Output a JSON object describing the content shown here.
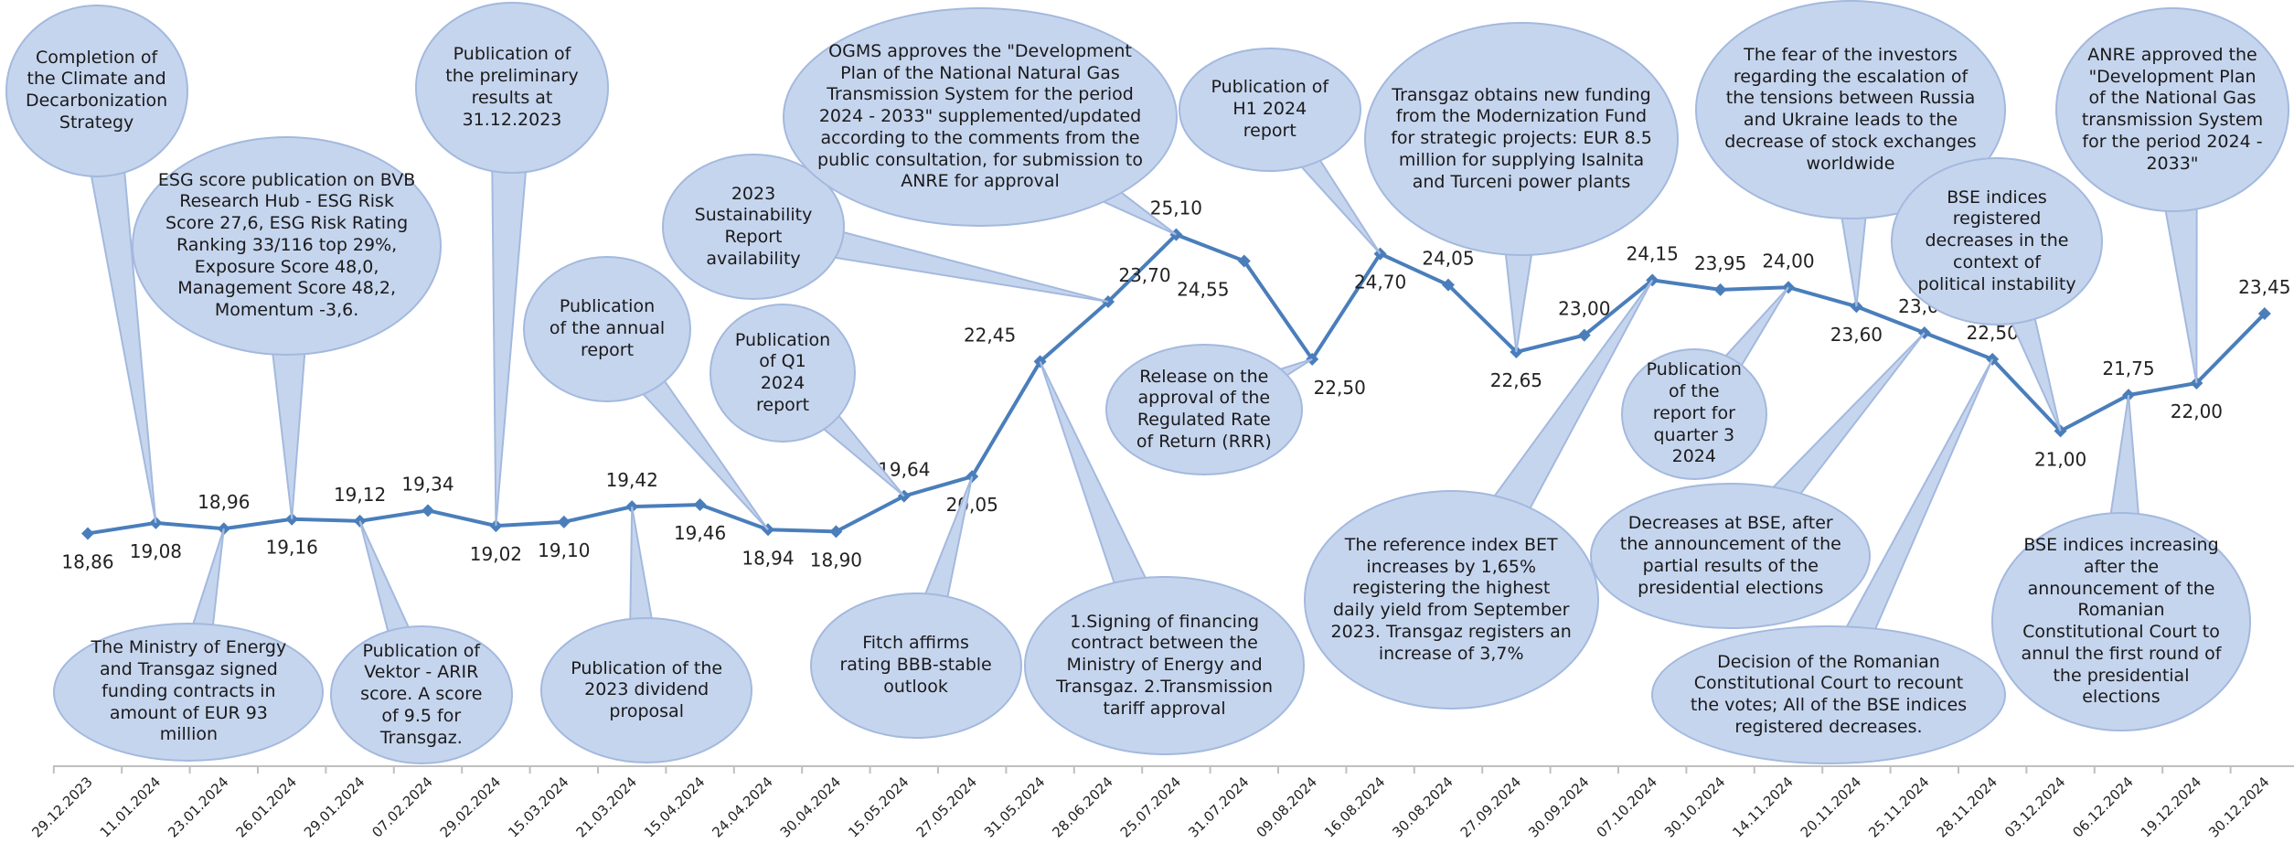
{
  "chart_data": {
    "type": "line",
    "categories": [
      "29.12.2023",
      "11.01.2024",
      "23.01.2024",
      "26.01.2024",
      "29.01.2024",
      "07.02.2024",
      "29.02.2024",
      "15.03.2024",
      "21.03.2024",
      "15.04.2024",
      "24.04.2024",
      "30.04.2024",
      "15.05.2024",
      "27.05.2024",
      "31.05.2024",
      "28.06.2024",
      "25.07.2024",
      "31.07.2024",
      "09.08.2024",
      "16.08.2024",
      "30.08.2024",
      "27.09.2024",
      "30.09.2024",
      "07.10.2024",
      "30.10.2024",
      "14.11.2024",
      "20.11.2024",
      "25.11.2024",
      "28.11.2024",
      "03.12.2024",
      "06.12.2024",
      "19.12.2024",
      "30.12.2024"
    ],
    "values": [
      18.86,
      19.08,
      18.96,
      19.16,
      19.12,
      19.34,
      19.02,
      19.1,
      19.42,
      19.46,
      18.94,
      18.9,
      19.64,
      20.05,
      22.45,
      23.7,
      25.1,
      24.55,
      22.5,
      24.7,
      24.05,
      22.65,
      23.0,
      24.15,
      23.95,
      24.0,
      23.6,
      23.05,
      22.5,
      21.0,
      21.75,
      22.0,
      23.45
    ],
    "value_labels": [
      "18,86",
      "19,08",
      "18,96",
      "19,16",
      "19,12",
      "19,34",
      "19,02",
      "19,10",
      "19,42",
      "19,46",
      "18,94",
      "18,90",
      "19,64",
      "20,05",
      "22,45",
      "23,70",
      "25,10",
      "24,55",
      "22,50",
      "24,70",
      "24,05",
      "22,65",
      "23,00",
      "24,15",
      "23,95",
      "24,00",
      "23,60",
      "23,05",
      "22,50",
      "21,00",
      "21,75",
      "22,00",
      "23,45"
    ],
    "color": "#4a7ebb",
    "ylim": [
      14,
      30
    ],
    "annotations": [
      "Completion of the Climate and Decarbonization Strategy",
      "ESG score publication on BVB Research Hub - ESG Risk Score 27,6, ESG Risk Rating Ranking 33/116 top 29%, Exposure Score 48,0, Management Score 48,2, Momentum -3,6.",
      "Publication of the preliminary results at 31.12.2023",
      "Publication of the annual report",
      "2023 Sustainability Report availability",
      "OGMS approves the \"Development Plan of the National Natural Gas Transmission System for the period 2024 - 2033\" supplemented/updated according to the comments from the public consultation, for submission to ANRE for approval",
      "Publication of Q1 2024 report",
      "Publication of H1 2024 report",
      "Transgaz obtains new funding from the Modernization Fund for strategic projects: EUR 8.5 million for supplying Isalnita and Turceni power plants",
      "The fear of the investors regarding the escalation of the tensions between Russia and Ukraine leads to the decrease of stock exchanges worldwide",
      "BSE indices registered decreases in the context of political instability",
      "ANRE approved the \"Development Plan of the National Gas transmission System for the period 2024 - 2033\"",
      "The Ministry of Energy and Transgaz signed funding contracts in amount of EUR 93 million",
      "Publication of Vektor - ARIR score. A score of 9.5 for Transgaz.",
      "Publication of the 2023 dividend proposal",
      "Release on the approval of the Regulated Rate of Return (RRR)",
      "Fitch affirms rating BBB-stable outlook",
      "1.Signing of financing contract between the Ministry of Energy and Transgaz. 2.Transmission tariff approval",
      "The reference index BET increases by 1,65% registering the highest daily yield from September 2023. Transgaz registers an increase of 3,7%",
      "Publication of the report for quarter 3 2024",
      "Decreases at BSE, after the announcement of the partial results of the presidential elections",
      "Decision of the Romanian Constitutional Court to recount the votes; All of the BSE indices registered decreases.",
      "BSE indices increasing after the announcement of the Romanian Constitutional Court to annul the first round of the presidential elections"
    ]
  }
}
